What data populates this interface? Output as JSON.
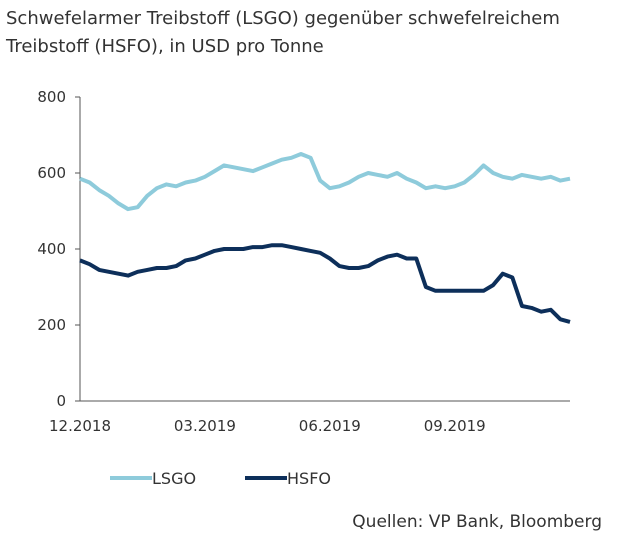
{
  "chart_data": {
    "type": "line",
    "title": [
      "Schwefelarmer Treibstoff (LSGO) gegenüber schwefelreichem",
      "Treibstoff (HSFO), in USD pro Tonne"
    ],
    "source": "Quellen: VP Bank, Bloomberg",
    "categories": [
      "12.2018",
      null,
      null,
      null,
      null,
      null,
      null,
      null,
      null,
      null,
      null,
      null,
      null,
      "03.2019",
      null,
      null,
      null,
      null,
      null,
      null,
      null,
      null,
      null,
      null,
      null,
      null,
      "06.2019",
      null,
      null,
      null,
      null,
      null,
      null,
      null,
      null,
      null,
      null,
      null,
      null,
      "09.2019",
      null,
      null,
      null,
      null,
      null,
      null,
      null,
      null,
      null,
      null,
      null,
      null
    ],
    "ylim": [
      0,
      800
    ],
    "yticks": [
      0,
      200,
      400,
      600,
      800
    ],
    "series": [
      {
        "name": "LSGO",
        "color": "#8ecbdb",
        "values": [
          585,
          575,
          555,
          540,
          520,
          505,
          510,
          540,
          560,
          570,
          565,
          575,
          580,
          590,
          605,
          620,
          615,
          610,
          605,
          615,
          625,
          635,
          640,
          650,
          640,
          580,
          560,
          565,
          575,
          590,
          600,
          595,
          590,
          600,
          585,
          575,
          560,
          565,
          560,
          565,
          575,
          595,
          620,
          600,
          590,
          585,
          595,
          590,
          585,
          590,
          580,
          585
        ]
      },
      {
        "name": "HSFO",
        "color": "#0d2f5a",
        "values": [
          370,
          360,
          345,
          340,
          335,
          330,
          340,
          345,
          350,
          350,
          355,
          370,
          375,
          385,
          395,
          400,
          400,
          400,
          405,
          405,
          410,
          410,
          405,
          400,
          395,
          390,
          375,
          355,
          350,
          350,
          355,
          370,
          380,
          385,
          375,
          375,
          300,
          290,
          290,
          290,
          290,
          290,
          290,
          305,
          335,
          325,
          250,
          245,
          235,
          240,
          215,
          208
        ]
      }
    ]
  }
}
